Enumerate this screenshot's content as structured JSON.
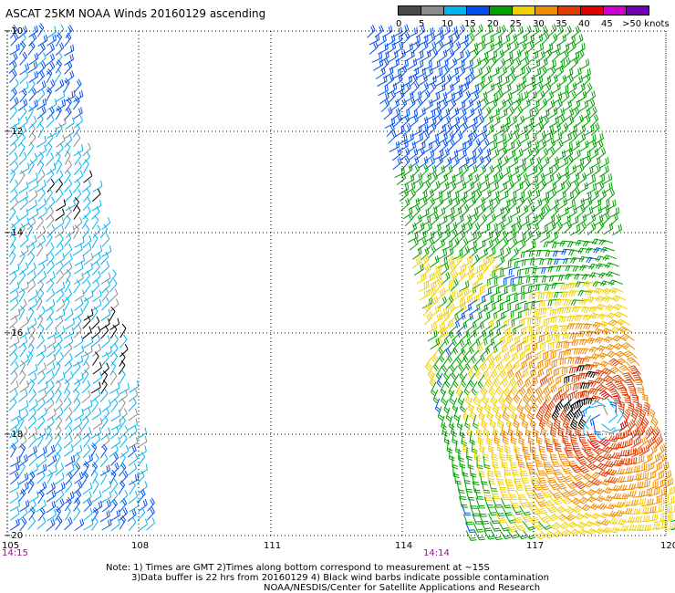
{
  "title": "ASCAT 25KM NOAA Winds 20160129 ascending",
  "legend": {
    "labels": [
      "0",
      "5",
      "10",
      "15",
      "20",
      "25",
      "30",
      "35",
      "40",
      "45",
      ">50 knots"
    ],
    "colors": [
      "#4a4a4a",
      "#8c8c8c",
      "#00b4f0",
      "#0050f0",
      "#00a000",
      "#f0d000",
      "#f08c00",
      "#e03c00",
      "#e00000",
      "#d000d0",
      "#7000b0"
    ]
  },
  "map": {
    "lat_labels": [
      "10",
      "12",
      "14",
      "16",
      "18",
      "20"
    ],
    "lon_labels": [
      "105",
      "108",
      "111",
      "114",
      "117",
      "120"
    ],
    "pass_times": [
      "14:15",
      "14:14"
    ]
  },
  "notes": [
    "Note: 1) Times are GMT 2)Times along bottom correspond to measurement at ~15S",
    "3)Data buffer is 22 hrs from 20160129 4) Black wind barbs indicate possible contamination",
    "NOAA/NESDIS/Center for Satellite Applications and Research"
  ]
}
